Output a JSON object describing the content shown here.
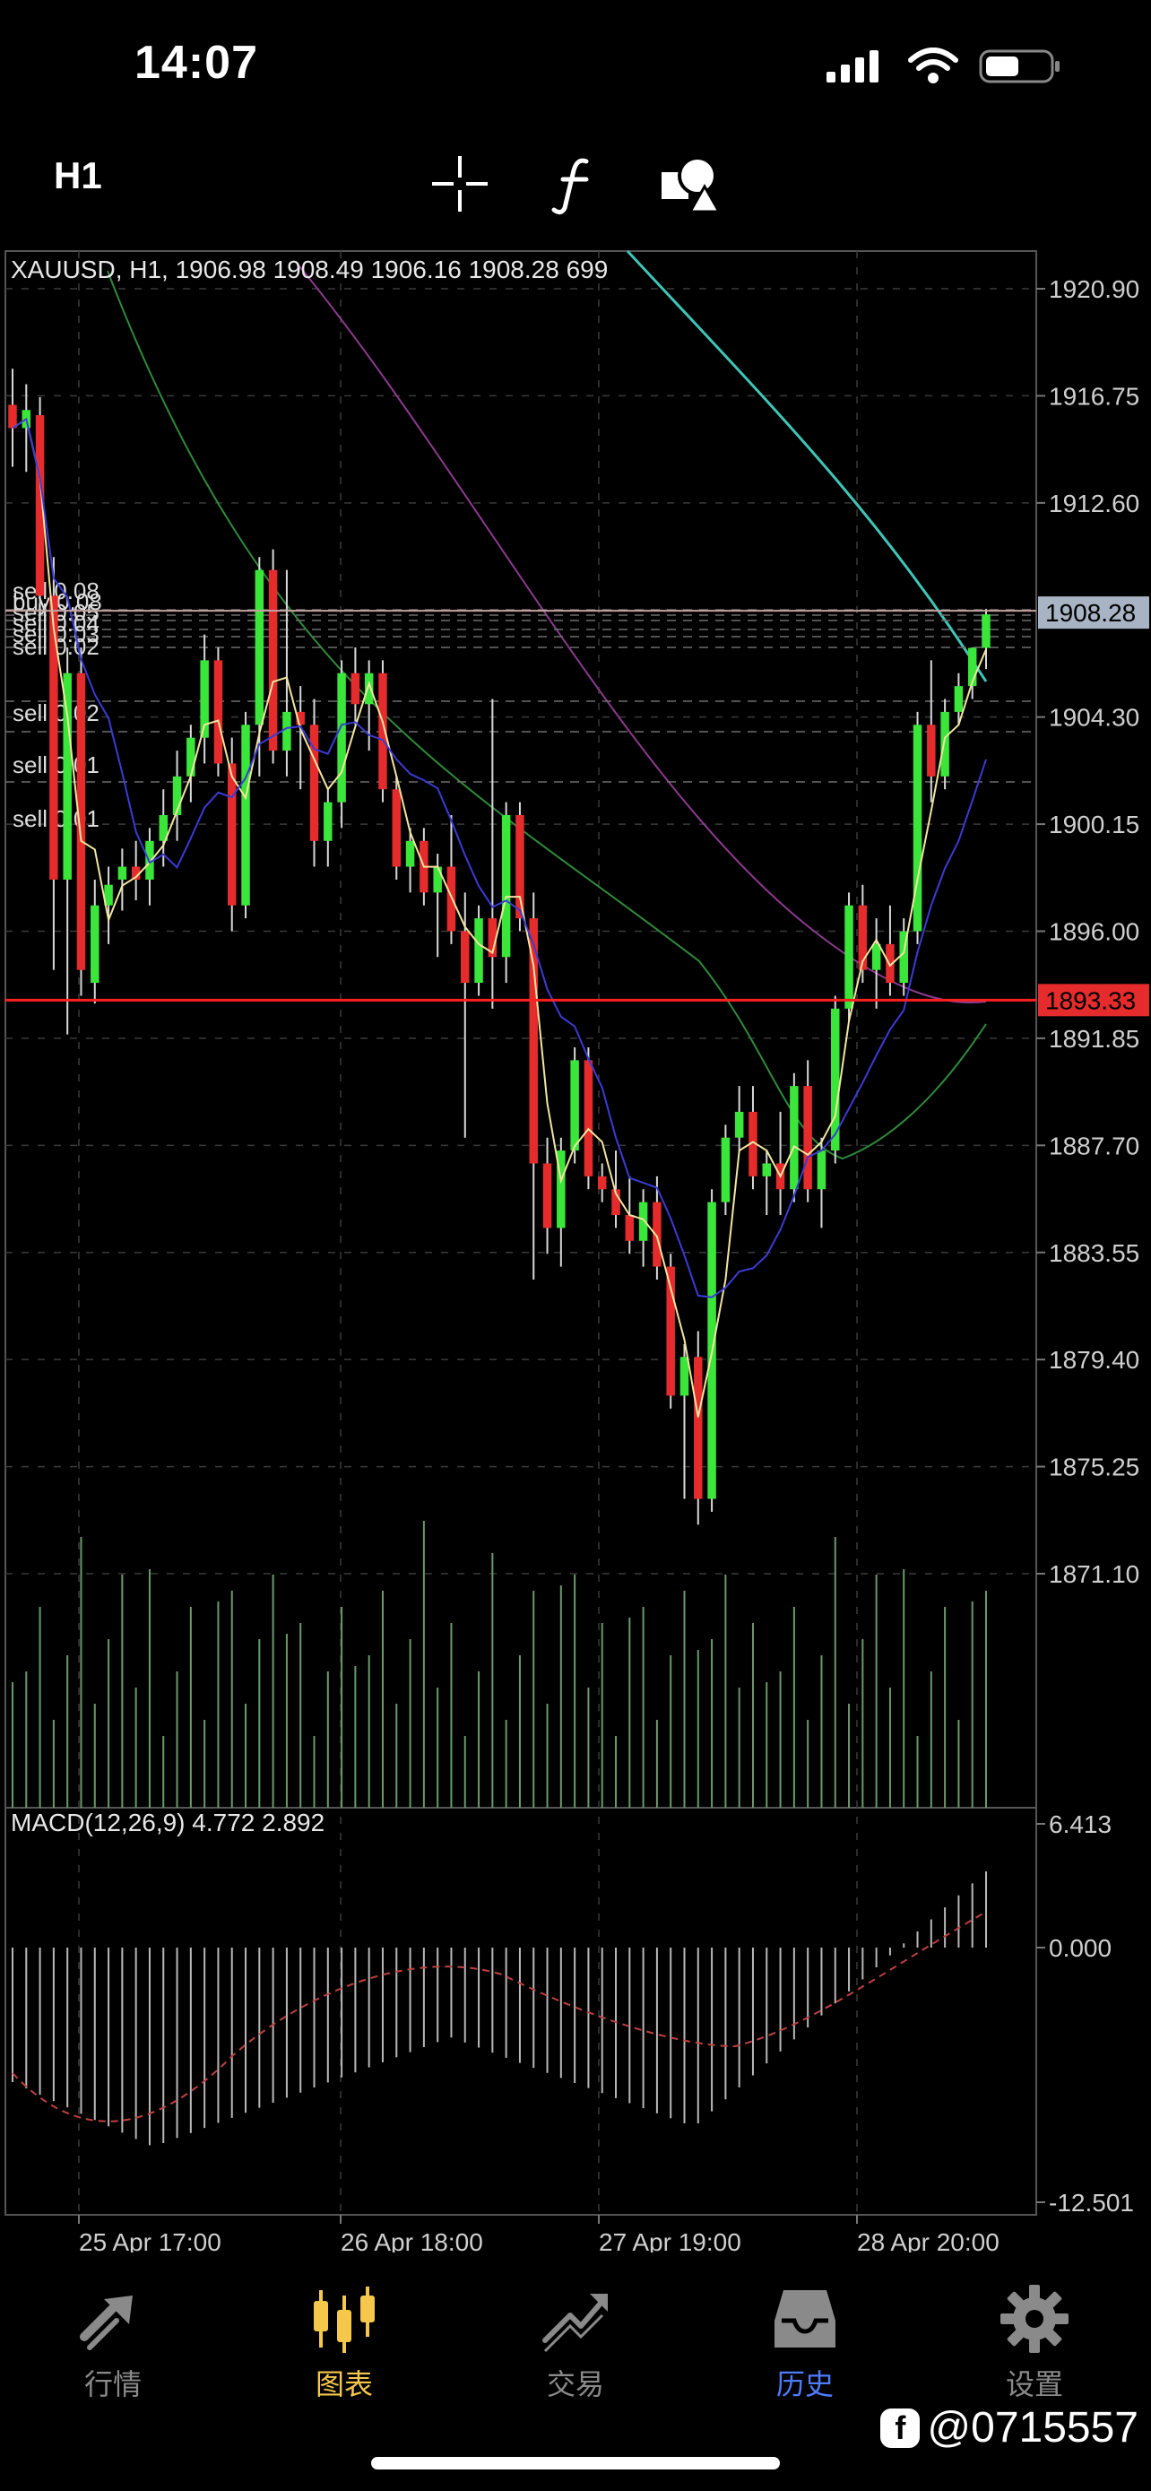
{
  "status": {
    "time": "14:07"
  },
  "toolbar": {
    "timeframe": "H1"
  },
  "chart": {
    "header": "XAUUSD, H1, 1906.98 1908.49 1906.16 1908.28 699",
    "price_labels": [
      "1920.90",
      "1916.75",
      "1912.60",
      "1904.30",
      "1900.15",
      "1896.00",
      "1891.85",
      "1887.70",
      "1883.55",
      "1879.40",
      "1875.25",
      "1871.10"
    ],
    "current_price": "1908.28",
    "line_price": "1893.33",
    "orders": [
      "sell 0.08",
      "buy 0.08",
      "sell 0.05",
      "sell 0.04",
      "sell 0.03",
      "sell 0.02",
      "sell 0.02",
      "sell 0.01",
      "sell 0.01"
    ],
    "date_labels": [
      "25 Apr 17:00",
      "26 Apr 18:00",
      "27 Apr 19:00",
      "28 Apr 20:00"
    ],
    "macd_header": "MACD(12,26,9) 4.772 2.892",
    "macd_labels": [
      "6.413",
      "0.000",
      "-12.501"
    ],
    "colors": {
      "bull": "#39e639",
      "bear": "#e52b2b",
      "cur_price_bg": "#a8b4c4",
      "line_price_bg": "#e52b2b",
      "ma_slow": "#3ec6b8"
    }
  },
  "chart_data": {
    "type": "candlestick",
    "symbol": "XAUUSD",
    "timeframe": "H1",
    "last_bar": {
      "open": 1906.98,
      "high": 1908.49,
      "low": 1906.16,
      "close": 1908.28,
      "volume": 699
    },
    "ylim": [
      1871.1,
      1920.9
    ],
    "candles": [
      [
        1916.4,
        1917.8,
        1914.0,
        1915.5
      ],
      [
        1915.5,
        1917.2,
        1913.8,
        1916.2
      ],
      [
        1916.0,
        1916.7,
        1908.0,
        1909.0
      ],
      [
        1909.0,
        1910.5,
        1894.5,
        1898.0
      ],
      [
        1898.0,
        1907.0,
        1892.0,
        1906.0
      ],
      [
        1906.0,
        1907.0,
        1893.5,
        1894.5
      ],
      [
        1894.0,
        1898.0,
        1893.2,
        1897.0
      ],
      [
        1897.0,
        1898.5,
        1895.5,
        1897.8
      ],
      [
        1898.0,
        1899.2,
        1896.8,
        1898.5
      ],
      [
        1898.5,
        1899.5,
        1897.2,
        1898.0
      ],
      [
        1898.0,
        1900.0,
        1897.0,
        1899.5
      ],
      [
        1899.5,
        1901.5,
        1898.5,
        1900.5
      ],
      [
        1900.5,
        1903.0,
        1899.5,
        1902.0
      ],
      [
        1902.0,
        1904.0,
        1901.0,
        1903.5
      ],
      [
        1903.5,
        1907.5,
        1902.5,
        1906.5
      ],
      [
        1906.5,
        1907.0,
        1902.0,
        1902.5
      ],
      [
        1902.5,
        1903.5,
        1896.0,
        1897.0
      ],
      [
        1897.0,
        1904.5,
        1896.5,
        1904.0
      ],
      [
        1904.0,
        1910.5,
        1902.0,
        1910.0
      ],
      [
        1910.0,
        1910.8,
        1902.5,
        1903.0
      ],
      [
        1903.0,
        1910.0,
        1902.0,
        1904.5
      ],
      [
        1904.5,
        1905.5,
        1901.5,
        1904.0
      ],
      [
        1904.0,
        1905.0,
        1898.5,
        1899.5
      ],
      [
        1899.5,
        1901.5,
        1898.5,
        1901.0
      ],
      [
        1901.0,
        1906.5,
        1900.0,
        1906.0
      ],
      [
        1906.0,
        1907.0,
        1904.0,
        1904.8
      ],
      [
        1904.8,
        1906.5,
        1903.0,
        1906.0
      ],
      [
        1906.0,
        1906.5,
        1901.0,
        1901.5
      ],
      [
        1901.5,
        1902.0,
        1898.0,
        1898.5
      ],
      [
        1898.5,
        1900.0,
        1897.5,
        1899.5
      ],
      [
        1899.5,
        1900.0,
        1897.0,
        1897.5
      ],
      [
        1897.5,
        1899.0,
        1895.0,
        1898.5
      ],
      [
        1898.5,
        1900.5,
        1895.5,
        1896.0
      ],
      [
        1896.0,
        1897.5,
        1888.0,
        1894.0
      ],
      [
        1894.0,
        1897.0,
        1893.5,
        1896.5
      ],
      [
        1896.5,
        1905.0,
        1893.0,
        1895.0
      ],
      [
        1895.0,
        1901.0,
        1894.0,
        1900.5
      ],
      [
        1900.5,
        1901.0,
        1896.0,
        1896.5
      ],
      [
        1896.5,
        1897.5,
        1882.5,
        1887.0
      ],
      [
        1887.0,
        1888.0,
        1883.5,
        1884.5
      ],
      [
        1884.5,
        1888.0,
        1883.0,
        1887.5
      ],
      [
        1887.5,
        1891.5,
        1887.0,
        1891.0
      ],
      [
        1891.0,
        1891.5,
        1886.0,
        1886.5
      ],
      [
        1886.5,
        1887.0,
        1885.5,
        1886.0
      ],
      [
        1886.0,
        1887.5,
        1884.5,
        1885.0
      ],
      [
        1885.0,
        1886.5,
        1883.5,
        1884.0
      ],
      [
        1884.0,
        1886.0,
        1883.0,
        1885.5
      ],
      [
        1885.5,
        1886.5,
        1882.5,
        1883.0
      ],
      [
        1883.0,
        1883.5,
        1877.5,
        1878.0
      ],
      [
        1878.0,
        1880.0,
        1874.0,
        1879.5
      ],
      [
        1879.5,
        1880.5,
        1873.0,
        1874.0
      ],
      [
        1874.0,
        1886.0,
        1873.5,
        1885.5
      ],
      [
        1885.5,
        1888.5,
        1885.0,
        1888.0
      ],
      [
        1888.0,
        1890.0,
        1887.5,
        1889.0
      ],
      [
        1889.0,
        1890.0,
        1886.0,
        1886.5
      ],
      [
        1886.5,
        1887.5,
        1885.0,
        1887.0
      ],
      [
        1887.0,
        1889.0,
        1885.0,
        1886.0
      ],
      [
        1886.0,
        1890.5,
        1885.5,
        1890.0
      ],
      [
        1890.0,
        1891.0,
        1885.5,
        1886.0
      ],
      [
        1886.0,
        1888.0,
        1884.5,
        1887.5
      ],
      [
        1887.5,
        1893.5,
        1887.0,
        1893.0
      ],
      [
        1893.0,
        1897.5,
        1892.5,
        1897.0
      ],
      [
        1897.0,
        1897.8,
        1894.0,
        1894.5
      ],
      [
        1894.5,
        1896.5,
        1893.0,
        1895.5
      ],
      [
        1895.5,
        1897.0,
        1893.5,
        1894.0
      ],
      [
        1894.0,
        1896.5,
        1893.5,
        1896.0
      ],
      [
        1896.0,
        1904.5,
        1895.5,
        1904.0
      ],
      [
        1904.0,
        1906.5,
        1901.0,
        1902.0
      ],
      [
        1902.0,
        1905.0,
        1901.5,
        1904.5
      ],
      [
        1904.5,
        1906.0,
        1904.0,
        1905.5
      ],
      [
        1905.5,
        1907.0,
        1905.0,
        1906.98
      ],
      [
        1906.98,
        1908.49,
        1906.16,
        1908.28
      ]
    ]
  }
}
